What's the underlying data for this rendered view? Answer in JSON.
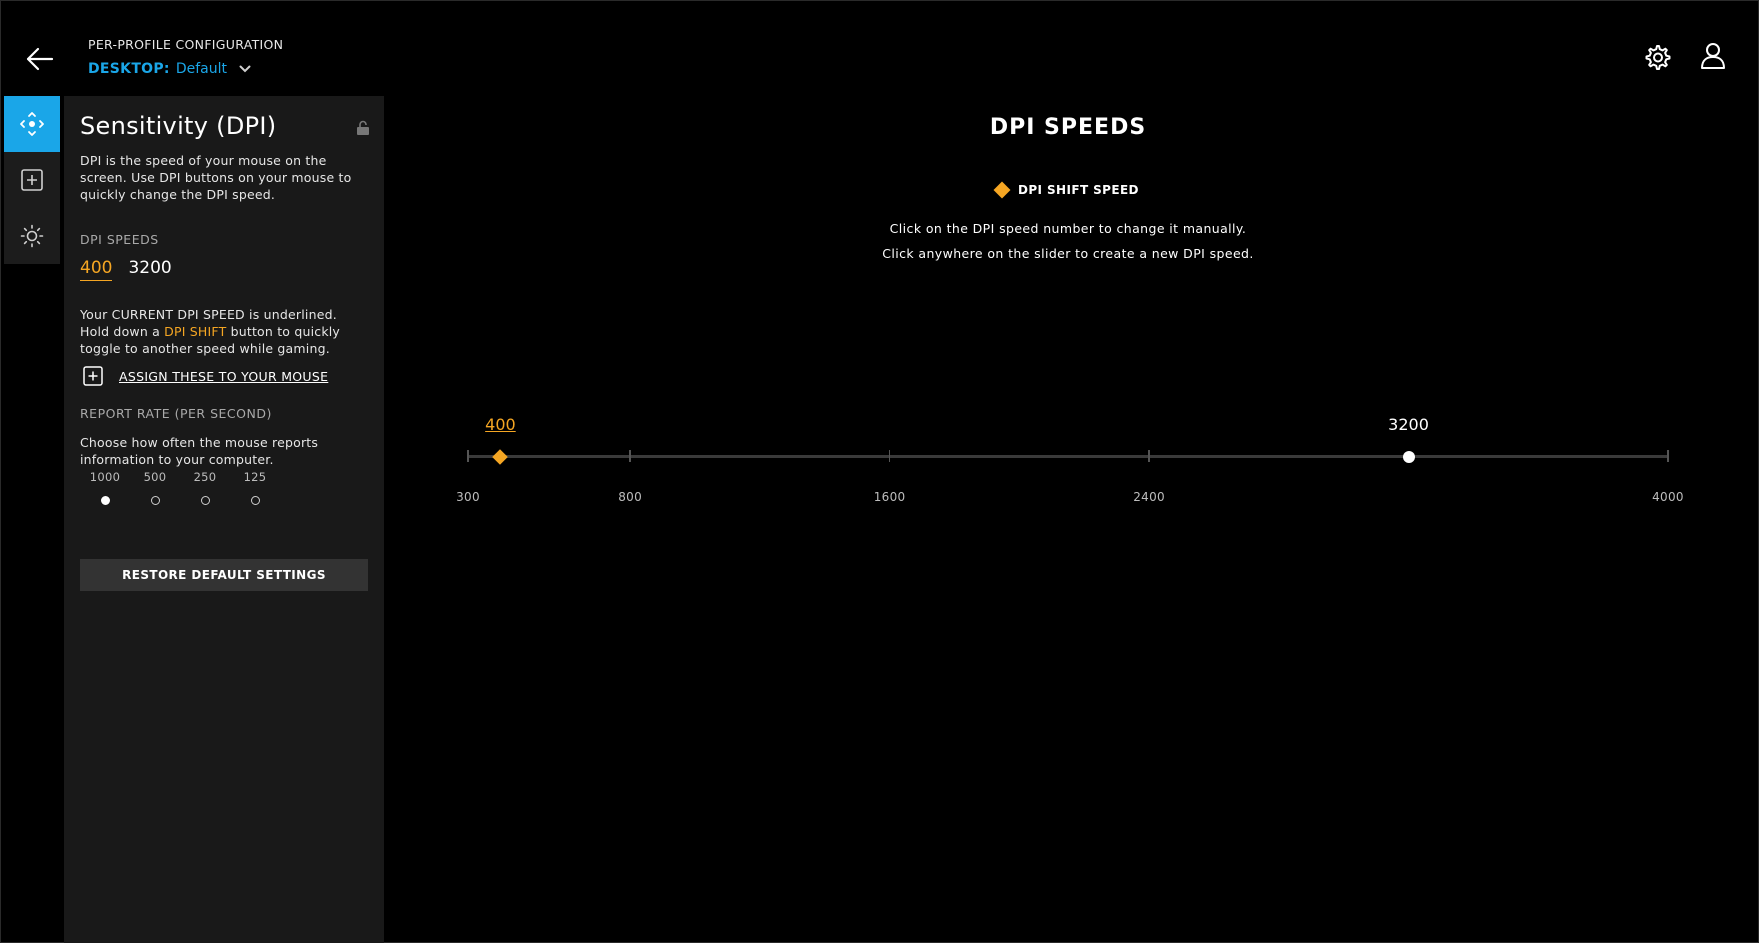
{
  "header": {
    "title": "PER-PROFILE CONFIGURATION",
    "profile_key": "DESKTOP:",
    "profile_value": "Default"
  },
  "panel": {
    "title": "Sensitivity (DPI)",
    "description": "DPI is the speed of your mouse on the screen. Use DPI buttons on your mouse to quickly change the DPI speed.",
    "dpi_label": "DPI SPEEDS",
    "dpi_speeds": [
      "400",
      "3200"
    ],
    "current_dpi_index": 0,
    "info_line1": "Your CURRENT DPI SPEED is underlined.",
    "info_line2_pre": "Hold down a ",
    "info_line2_hl": "DPI SHIFT",
    "info_line2_post": " button to quickly",
    "info_line3": "toggle to another speed while gaming.",
    "assign_label": "ASSIGN THESE TO YOUR MOUSE",
    "report_rate_label": "REPORT RATE (PER SECOND)",
    "report_rate_desc": "Choose how often the mouse reports information to your computer.",
    "report_rates": [
      "1000",
      "500",
      "250",
      "125"
    ],
    "selected_report_rate_index": 0,
    "restore_label": "RESTORE DEFAULT SETTINGS"
  },
  "main": {
    "title": "DPI SPEEDS",
    "legend_label": "DPI SHIFT SPEED",
    "instruction1": "Click on the DPI speed number to change it manually.",
    "instruction2": "Click anywhere on the slider to create a new DPI speed."
  },
  "slider": {
    "min": 300,
    "max": 4000,
    "ticks": [
      {
        "value": 300,
        "label": "300"
      },
      {
        "value": 800,
        "label": "800"
      },
      {
        "value": 1600,
        "label": "1600"
      },
      {
        "value": 2400,
        "label": "2400"
      },
      {
        "value": 4000,
        "label": "4000"
      }
    ],
    "thumbs": [
      {
        "value": 400,
        "label": "400",
        "type": "shift"
      },
      {
        "value": 3200,
        "label": "3200",
        "type": "normal"
      }
    ]
  },
  "colors": {
    "accent_blue": "#1aa6e8",
    "shift_orange": "#f5a623"
  },
  "icons": [
    "back-arrow-icon",
    "chevron-down-icon",
    "gear-icon",
    "user-icon",
    "move-pointer-icon",
    "plus-square-icon",
    "sun-lighting-icon",
    "unlock-icon"
  ]
}
